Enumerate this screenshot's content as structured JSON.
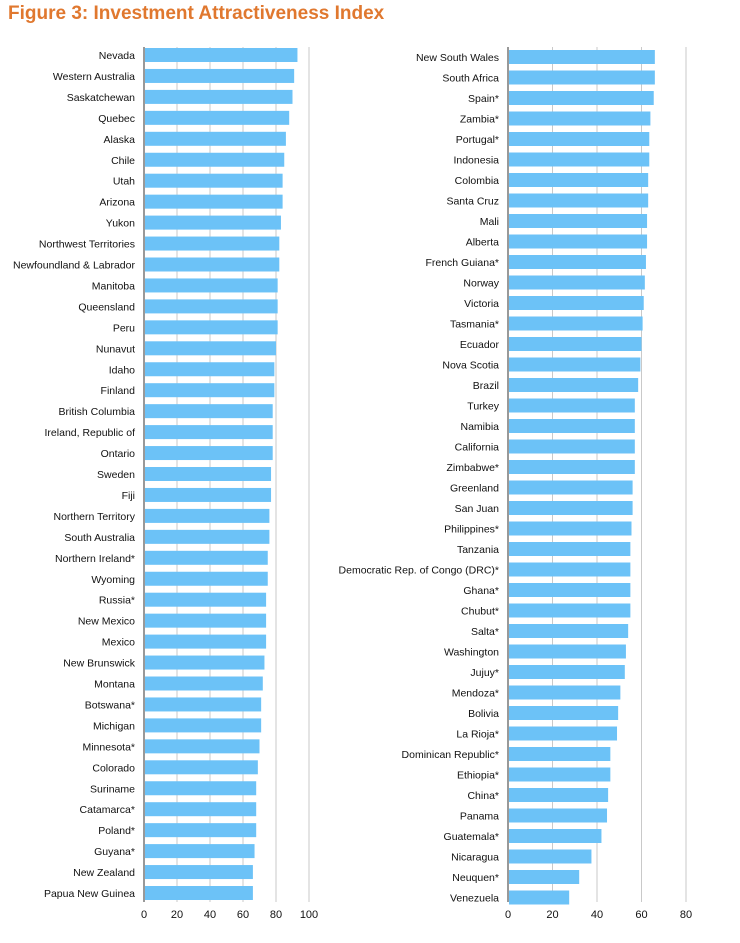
{
  "title": "Figure 3: Investment Attractiveness Index",
  "colors": {
    "bar": "#6cc2f7",
    "title": "#e0782f"
  },
  "chart_data": [
    {
      "type": "bar",
      "orientation": "horizontal",
      "xlim": [
        0,
        100
      ],
      "xticks": [
        "0",
        "20",
        "40",
        "60",
        "80",
        "100"
      ],
      "grid": true,
      "categories": [
        "Nevada",
        "Western Australia",
        "Saskatchewan",
        "Quebec",
        "Alaska",
        "Chile",
        "Utah",
        "Arizona",
        "Yukon",
        "Northwest Territories",
        "Newfoundland & Labrador",
        "Manitoba",
        "Queensland",
        "Peru",
        "Nunavut",
        "Idaho",
        "Finland",
        "British Columbia",
        "Ireland, Republic of",
        "Ontario",
        "Sweden",
        "Fiji",
        "Northern Territory",
        "South Australia",
        "Northern Ireland*",
        "Wyoming",
        "Russia*",
        "New Mexico",
        "Mexico",
        "New Brunswick",
        "Montana",
        "Botswana*",
        "Michigan",
        "Minnesota*",
        "Colorado",
        "Suriname",
        "Catamarca*",
        "Poland*",
        "Guyana*",
        "New Zealand",
        "Papua New Guinea"
      ],
      "values": [
        93,
        91,
        90,
        88,
        86,
        85,
        84,
        84,
        83,
        82,
        82,
        81,
        81,
        81,
        80,
        79,
        79,
        78,
        78,
        78,
        77,
        77,
        76,
        76,
        75,
        75,
        74,
        74,
        74,
        73,
        72,
        71,
        71,
        70,
        69,
        68,
        68,
        68,
        67,
        66,
        66
      ]
    },
    {
      "type": "bar",
      "orientation": "horizontal",
      "xlim": [
        0,
        80
      ],
      "xticks": [
        "0",
        "20",
        "40",
        "60",
        "80"
      ],
      "grid": true,
      "categories": [
        "New South Wales",
        "South Africa",
        "Spain*",
        "Zambia*",
        "Portugal*",
        "Indonesia",
        "Colombia",
        "Santa Cruz",
        "Mali",
        "Alberta",
        "French Guiana*",
        "Norway",
        "Victoria",
        "Tasmania*",
        "Ecuador",
        "Nova Scotia",
        "Brazil",
        "Turkey",
        "Namibia",
        "California",
        "Zimbabwe*",
        "Greenland",
        "San Juan",
        "Philippines*",
        "Tanzania",
        "Democratic Rep. of Congo (DRC)*",
        "Ghana*",
        "Chubut*",
        "Salta*",
        "Washington",
        "Jujuy*",
        "Mendoza*",
        "Bolivia",
        "La Rioja*",
        "Dominican Republic*",
        "Ethiopia*",
        "China*",
        "Panama",
        "Guatemala*",
        "Nicaragua",
        "Neuquen*",
        "Venezuela"
      ],
      "values": [
        66,
        66,
        65.5,
        64,
        63.5,
        63.5,
        63,
        63,
        62.5,
        62.5,
        62,
        61.5,
        61,
        60.5,
        60,
        59.5,
        58.5,
        57,
        57,
        57,
        57,
        56,
        56,
        55.5,
        55,
        55,
        55,
        55,
        54,
        53,
        52.5,
        50.5,
        49.5,
        49,
        46,
        46,
        45,
        44.5,
        42,
        37.5,
        32,
        27.5
      ]
    }
  ]
}
